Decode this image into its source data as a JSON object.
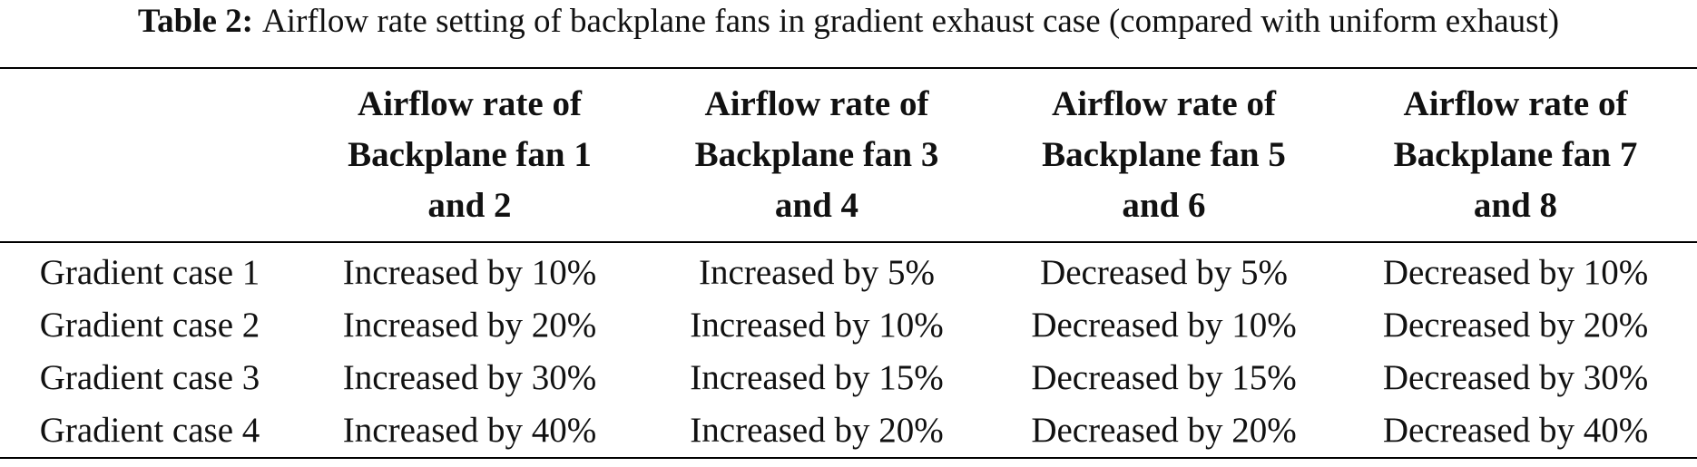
{
  "caption": {
    "label": "Table 2:",
    "text": "Airflow rate setting of backplane fans in gradient exhaust case (compared with uniform exhaust)"
  },
  "table": {
    "header": [
      "",
      [
        "Airflow rate of",
        "Backplane fan 1",
        "and 2"
      ],
      [
        "Airflow rate of",
        "Backplane fan 3",
        "and 4"
      ],
      [
        "Airflow rate of",
        "Backplane fan 5",
        "and 6"
      ],
      [
        "Airflow rate of",
        "Backplane fan 7",
        "and 8"
      ]
    ],
    "rows": [
      [
        "Gradient case 1",
        "Increased by 10%",
        "Increased by 5%",
        "Decreased by 5%",
        "Decreased by 10%"
      ],
      [
        "Gradient case 2",
        "Increased by 20%",
        "Increased by 10%",
        "Decreased by 10%",
        "Decreased by 20%"
      ],
      [
        "Gradient case 3",
        "Increased by 30%",
        "Increased by 15%",
        "Decreased by 15%",
        "Decreased by 30%"
      ],
      [
        "Gradient case 4",
        "Increased by 40%",
        "Increased by 20%",
        "Decreased by 20%",
        "Decreased by 40%"
      ]
    ]
  }
}
